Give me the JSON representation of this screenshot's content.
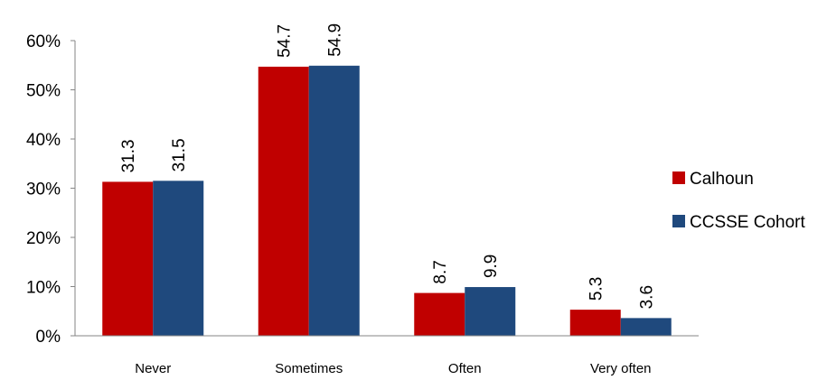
{
  "chart_data": {
    "type": "bar",
    "categories": [
      "Never",
      "Sometimes",
      "Often",
      "Very often"
    ],
    "series": [
      {
        "name": "Calhoun",
        "values": [
          31.3,
          54.7,
          8.7,
          5.3
        ],
        "color": "#C00000"
      },
      {
        "name": "CCSSE Cohort",
        "values": [
          31.5,
          54.9,
          9.9,
          3.6
        ],
        "color": "#1F497D"
      }
    ],
    "ylim": [
      0,
      60
    ],
    "yticks": [
      "0%",
      "10%",
      "20%",
      "30%",
      "40%",
      "50%",
      "60%"
    ],
    "ytick_values": [
      0,
      10,
      20,
      30,
      40,
      50,
      60
    ],
    "legend_position": "right",
    "grid": false
  }
}
